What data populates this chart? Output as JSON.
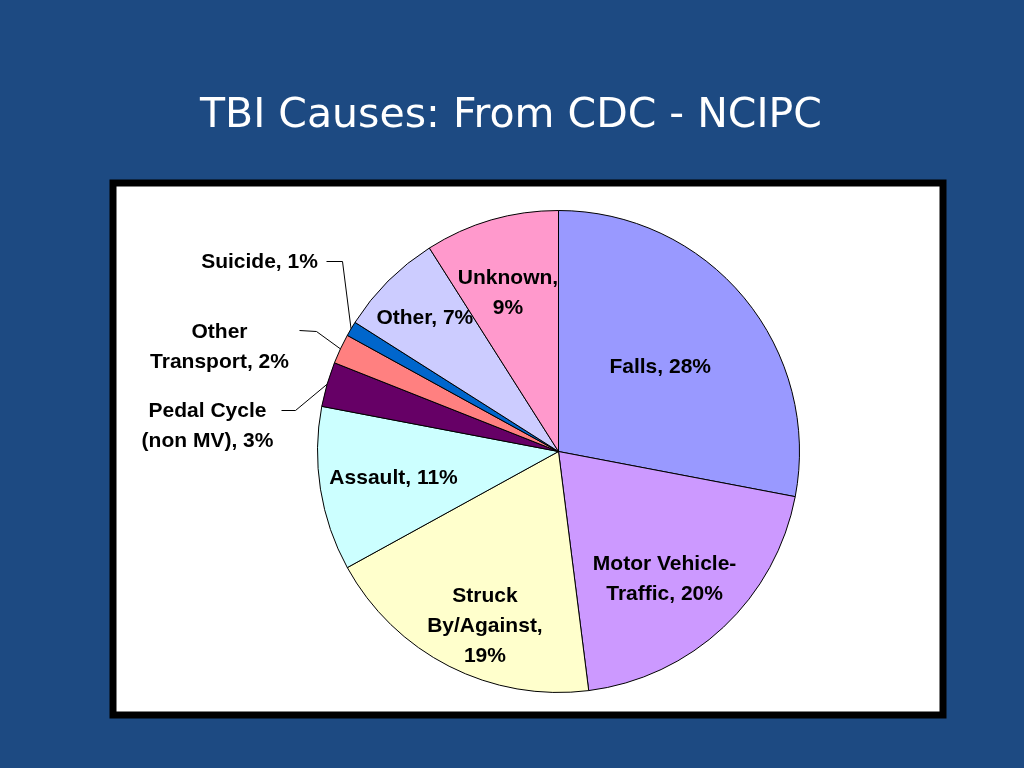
{
  "chart_data": {
    "type": "pie",
    "title": "TBI Causes: From CDC - NCIPC",
    "categories": [
      "Falls, 28%",
      "Motor Vehicle-Traffic, 20%",
      "Struck By/Against, 19%",
      "Assault, 11%",
      "Pedal Cycle (non MV), 3%",
      "Other Transport, 2%",
      "Suicide, 1%",
      "Other, 7%",
      "Unknown, 9%"
    ],
    "values": [
      28,
      20,
      19,
      11,
      3,
      2,
      1,
      7,
      9
    ],
    "colors": [
      "#9999ff",
      "#cc99ff",
      "#ffffcc",
      "#ccffff",
      "#660066",
      "#ff8080",
      "#0066cc",
      "#ccccff",
      "#ff99cc"
    ]
  }
}
